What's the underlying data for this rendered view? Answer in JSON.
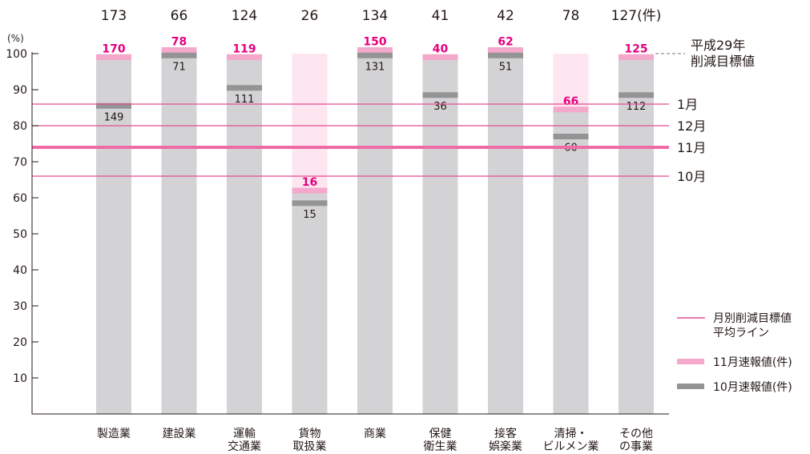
{
  "chart_data": {
    "type": "bar",
    "y_unit_label": "(%)",
    "ylim": [
      0,
      100
    ],
    "yticks": [
      10,
      20,
      30,
      40,
      50,
      60,
      70,
      80,
      90,
      100
    ],
    "categories": [
      [
        "製造業"
      ],
      [
        "建設業"
      ],
      [
        "運輸",
        "交通業"
      ],
      [
        "貨物",
        "取扱業"
      ],
      [
        "商業"
      ],
      [
        "保健",
        "衛生業"
      ],
      [
        "接客",
        "娯楽業"
      ],
      [
        "清掃・",
        "ビルメン業"
      ],
      [
        "その他",
        "の事業"
      ]
    ],
    "top_totals": [
      "173",
      "66",
      "124",
      "26",
      "134",
      "41",
      "42",
      "78",
      "127(件)"
    ],
    "series": [
      {
        "name": "10月速報値(件)",
        "color": "#949494",
        "values": [
          85.5,
          99.5,
          90.5,
          58.5,
          99.5,
          88.5,
          99.5,
          77.0,
          88.5
        ],
        "labels": [
          "149",
          "71",
          "111",
          "15",
          "131",
          "36",
          "51",
          "60",
          "112"
        ]
      },
      {
        "name": "11月速報値(件)",
        "color": "#f4a8cb",
        "values": [
          99.0,
          101.0,
          99.0,
          62.0,
          101.0,
          99.0,
          101.0,
          84.5,
          99.0
        ],
        "labels": [
          "170",
          "78",
          "119",
          "16",
          "150",
          "40",
          "62",
          "66",
          "125"
        ]
      }
    ],
    "target_value": 100,
    "target_label": [
      "平成29年",
      "削減目標値"
    ],
    "monthly_lines": [
      {
        "label": "1月",
        "value": 86,
        "thick": false
      },
      {
        "label": "12月",
        "value": 80,
        "thick": false
      },
      {
        "label": "11月",
        "value": 74,
        "thick": true
      },
      {
        "label": "10月",
        "value": 66,
        "thick": false
      }
    ],
    "legend": {
      "line_label": [
        "月別削減目標値",
        "平均ライン"
      ],
      "items": [
        "11月速報値(件)",
        "10月速報値(件)"
      ]
    },
    "colors": {
      "bar_base": "#d3d3d5",
      "bar_target_bg": "#fde6ef",
      "nov_marker": "#f4a8cb",
      "oct_marker": "#949494",
      "line": "#e64b93",
      "line_thick": "#ef6ba7",
      "nov_text": "#e4007f",
      "text": "#231815"
    }
  }
}
